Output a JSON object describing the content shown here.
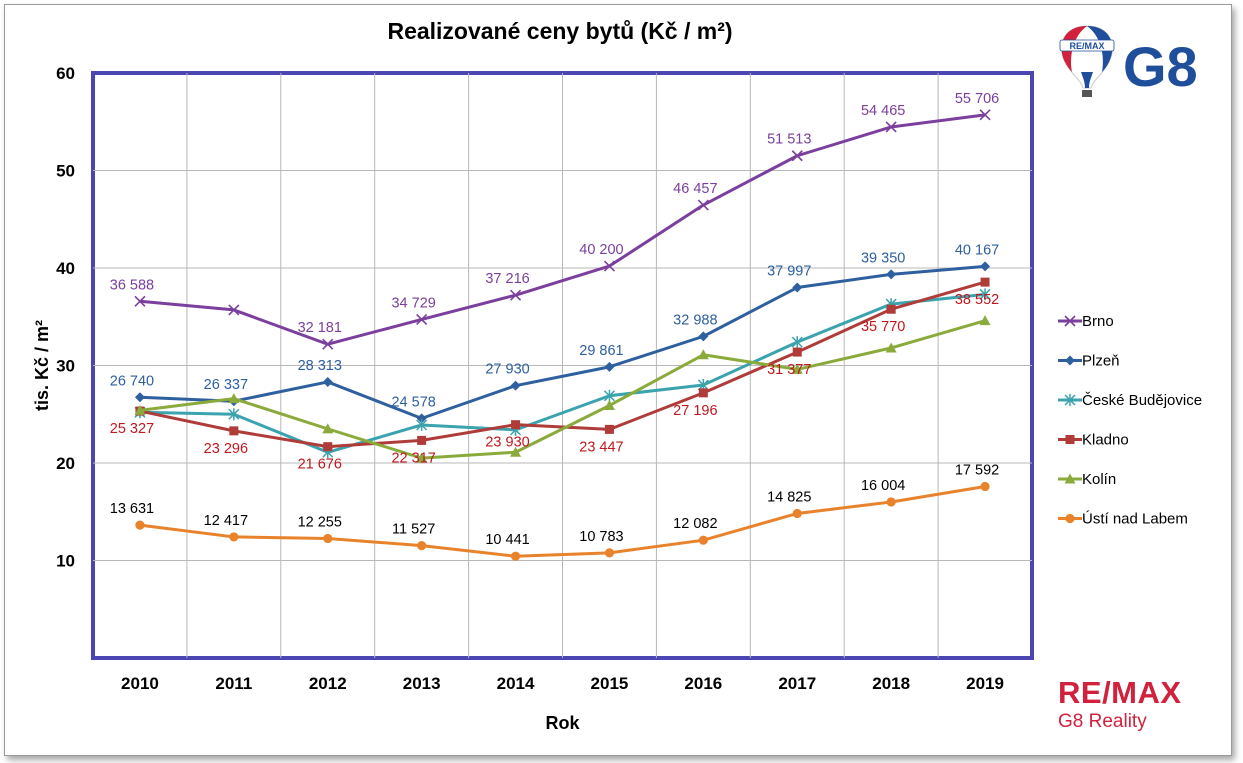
{
  "title": "Realizované ceny bytů (Kč / m²)",
  "logo_top": {
    "balloon_text": "RE/MAX",
    "brand": "G8",
    "balloon_colors": [
      "#d1213d",
      "#ffffff",
      "#1f4e9b"
    ],
    "brand_color": "#1f4e9b"
  },
  "logo_bottom": {
    "word": "RE/MAX",
    "sub": "G8 Reality",
    "color": "#d1213d"
  },
  "chart_data": {
    "type": "line",
    "title": "Realizované ceny bytů (Kč / m²)",
    "xlabel": "Rok",
    "ylabel": "tis. Kč / m²",
    "categories": [
      "2010",
      "2011",
      "2012",
      "2013",
      "2014",
      "2015",
      "2016",
      "2017",
      "2018",
      "2019"
    ],
    "ylim": [
      0,
      60
    ],
    "yticks": [
      "10",
      "20",
      "30",
      "40",
      "50",
      "60"
    ],
    "grid": true,
    "legend": "right",
    "series": [
      {
        "name": "Brno",
        "color": "#7b3f9e",
        "marker": "x",
        "values": [
          36.588,
          35.7,
          32.181,
          34.729,
          37.216,
          40.2,
          46.457,
          51.513,
          54.465,
          55.706
        ],
        "labels": [
          "36 588",
          "",
          "32 181",
          "34 729",
          "37 216",
          "40 200",
          "46 457",
          "51 513",
          "54 465",
          "55 706"
        ],
        "label_color": "#7b3f9e",
        "label_pos": "above"
      },
      {
        "name": "Plzeň",
        "color": "#2e5f9e",
        "marker": "diamond",
        "values": [
          26.74,
          26.337,
          28.313,
          24.578,
          27.93,
          29.861,
          32.988,
          37.997,
          39.35,
          40.167
        ],
        "labels": [
          "26 740",
          "26 337",
          "28 313",
          "24 578",
          "27 930",
          "29 861",
          "32 988",
          "37 997",
          "39 350",
          "40 167"
        ],
        "label_color": "#2e5f9e",
        "label_pos": "above"
      },
      {
        "name": "České Budějovice",
        "color": "#3ba3ad",
        "marker": "star",
        "values": [
          25.2,
          25.0,
          21.1,
          23.9,
          23.4,
          26.9,
          28.0,
          32.4,
          36.3,
          37.3
        ],
        "labels": [
          "",
          "",
          "",
          "",
          "",
          "",
          "",
          "",
          "",
          ""
        ],
        "label_color": "#3ba3ad",
        "label_pos": "below"
      },
      {
        "name": "Kladno",
        "color": "#b03c3a",
        "marker": "square",
        "values": [
          25.327,
          23.296,
          21.676,
          22.317,
          23.93,
          23.447,
          27.196,
          31.377,
          35.77,
          38.552
        ],
        "labels": [
          "25 327",
          "23 296",
          "21 676",
          "22 317",
          "23 930",
          "23 447",
          "27 196",
          "31 377",
          "35 770",
          "38 552"
        ],
        "label_color": "#c0181e",
        "label_pos": "below"
      },
      {
        "name": "Kolín",
        "color": "#8aab3c",
        "marker": "triangle",
        "values": [
          25.4,
          26.6,
          23.5,
          20.5,
          21.1,
          25.9,
          31.1,
          29.6,
          31.8,
          34.6
        ],
        "labels": [
          "",
          "",
          "",
          "",
          "",
          "",
          "",
          "",
          "",
          ""
        ],
        "label_color": "#8aab3c",
        "label_pos": "above"
      },
      {
        "name": "Ústí nad Labem",
        "color": "#e8832c",
        "marker": "circle",
        "values": [
          13.631,
          12.417,
          12.255,
          11.527,
          10.441,
          10.783,
          12.082,
          14.825,
          16.004,
          17.592
        ],
        "labels": [
          "13 631",
          "12 417",
          "12 255",
          "11 527",
          "10 441",
          "10 783",
          "12 082",
          "14 825",
          "16 004",
          "17 592"
        ],
        "label_color": "#000000",
        "label_pos": "above"
      }
    ]
  }
}
